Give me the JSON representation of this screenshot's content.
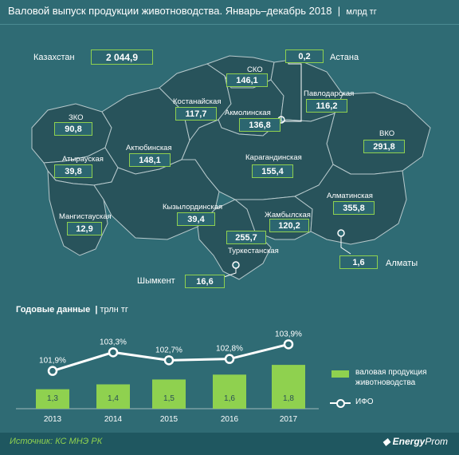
{
  "header": {
    "title": "Валовой выпуск продукции животноводства. Январь–декабрь 2018",
    "unit": "млрд тг"
  },
  "kazakhstan": {
    "label": "Казахстан",
    "value": "2 044,9"
  },
  "regions": [
    {
      "name": "СКО",
      "value": "146,1"
    },
    {
      "name": "Павлодарская",
      "value": "116,2"
    },
    {
      "name": "Костанайская",
      "value": "117,7"
    },
    {
      "name": "Акмолинская",
      "value": "136,8"
    },
    {
      "name": "ЗКО",
      "value": "90,8"
    },
    {
      "name": "Актюбинская",
      "value": "148,1"
    },
    {
      "name": "ВКО",
      "value": "291,8"
    },
    {
      "name": "Атырауская",
      "value": "39,8"
    },
    {
      "name": "Карагандинская",
      "value": "155,4"
    },
    {
      "name": "Алматинская",
      "value": "355,8"
    },
    {
      "name": "Кызылординская",
      "value": "39,4"
    },
    {
      "name": "Мангистауская",
      "value": "12,9"
    },
    {
      "name": "Жамбылская",
      "value": "120,2"
    },
    {
      "name": "Туркестанская",
      "value": "255,7"
    }
  ],
  "cities": [
    {
      "name": "Астана",
      "value": "0,2"
    },
    {
      "name": "Алматы",
      "value": "1,6"
    },
    {
      "name": "Шымкент",
      "value": "16,6"
    }
  ],
  "annual": {
    "title": "Годовые данные",
    "unit": "трлн тг"
  },
  "chart_data": {
    "type": "bar",
    "title": "Годовые данные",
    "categories": [
      "2013",
      "2014",
      "2015",
      "2016",
      "2017"
    ],
    "series": [
      {
        "name": "валовая продукция животноводства",
        "values": [
          1.3,
          1.4,
          1.5,
          1.6,
          1.8
        ],
        "labels": [
          "1,3",
          "1,4",
          "1,5",
          "1,6",
          "1,8"
        ],
        "type": "bar"
      },
      {
        "name": "ИФО",
        "values": [
          101.9,
          103.3,
          102.7,
          102.8,
          103.9
        ],
        "labels": [
          "101,9%",
          "103,3%",
          "102,7%",
          "102,8%",
          "103,9%"
        ],
        "type": "line"
      }
    ],
    "ylabel": "трлн тг",
    "colors": {
      "bar": "#8fd14f",
      "line": "#ffffff"
    }
  },
  "footer": {
    "source": "Источник: КС МНЭ РК",
    "brand_bold": "Energy",
    "brand_thin": "Prom"
  }
}
